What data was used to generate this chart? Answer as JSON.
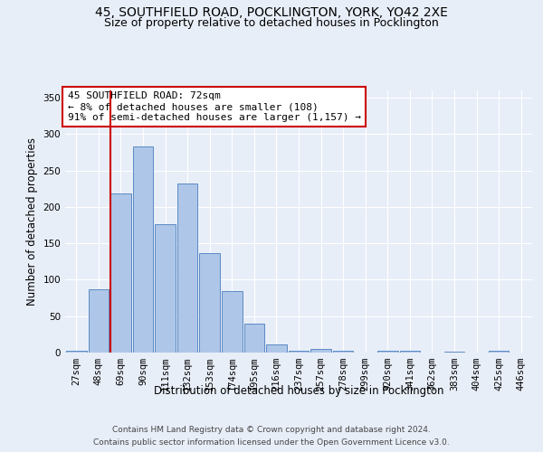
{
  "title": "45, SOUTHFIELD ROAD, POCKLINGTON, YORK, YO42 2XE",
  "subtitle": "Size of property relative to detached houses in Pocklington",
  "xlabel": "Distribution of detached houses by size in Pocklington",
  "ylabel": "Number of detached properties",
  "categories": [
    "27sqm",
    "48sqm",
    "69sqm",
    "90sqm",
    "111sqm",
    "132sqm",
    "153sqm",
    "174sqm",
    "195sqm",
    "216sqm",
    "237sqm",
    "257sqm",
    "278sqm",
    "299sqm",
    "320sqm",
    "341sqm",
    "362sqm",
    "383sqm",
    "404sqm",
    "425sqm",
    "446sqm"
  ],
  "values": [
    2,
    87,
    218,
    283,
    176,
    232,
    137,
    85,
    40,
    11,
    3,
    5,
    3,
    0,
    2,
    3,
    0,
    1,
    0,
    2,
    0
  ],
  "bar_color": "#aec6e8",
  "bar_edge_color": "#5b8ac4",
  "vline_color": "#cc0000",
  "annotation_line1": "45 SOUTHFIELD ROAD: 72sqm",
  "annotation_line2": "← 8% of detached houses are smaller (108)",
  "annotation_line3": "91% of semi-detached houses are larger (1,157) →",
  "annotation_box_color": "#ffffff",
  "annotation_box_edge": "#cc0000",
  "ylim": [
    0,
    360
  ],
  "yticks": [
    0,
    50,
    100,
    150,
    200,
    250,
    300,
    350
  ],
  "footer1": "Contains HM Land Registry data © Crown copyright and database right 2024.",
  "footer2": "Contains public sector information licensed under the Open Government Licence v3.0.",
  "bg_color": "#e8eef8",
  "plot_bg_color": "#e8eef8",
  "grid_color": "#ffffff",
  "title_fontsize": 10,
  "subtitle_fontsize": 9,
  "xlabel_fontsize": 8.5,
  "ylabel_fontsize": 8.5,
  "tick_fontsize": 7.5,
  "annotation_fontsize": 8,
  "footer_fontsize": 6.5
}
